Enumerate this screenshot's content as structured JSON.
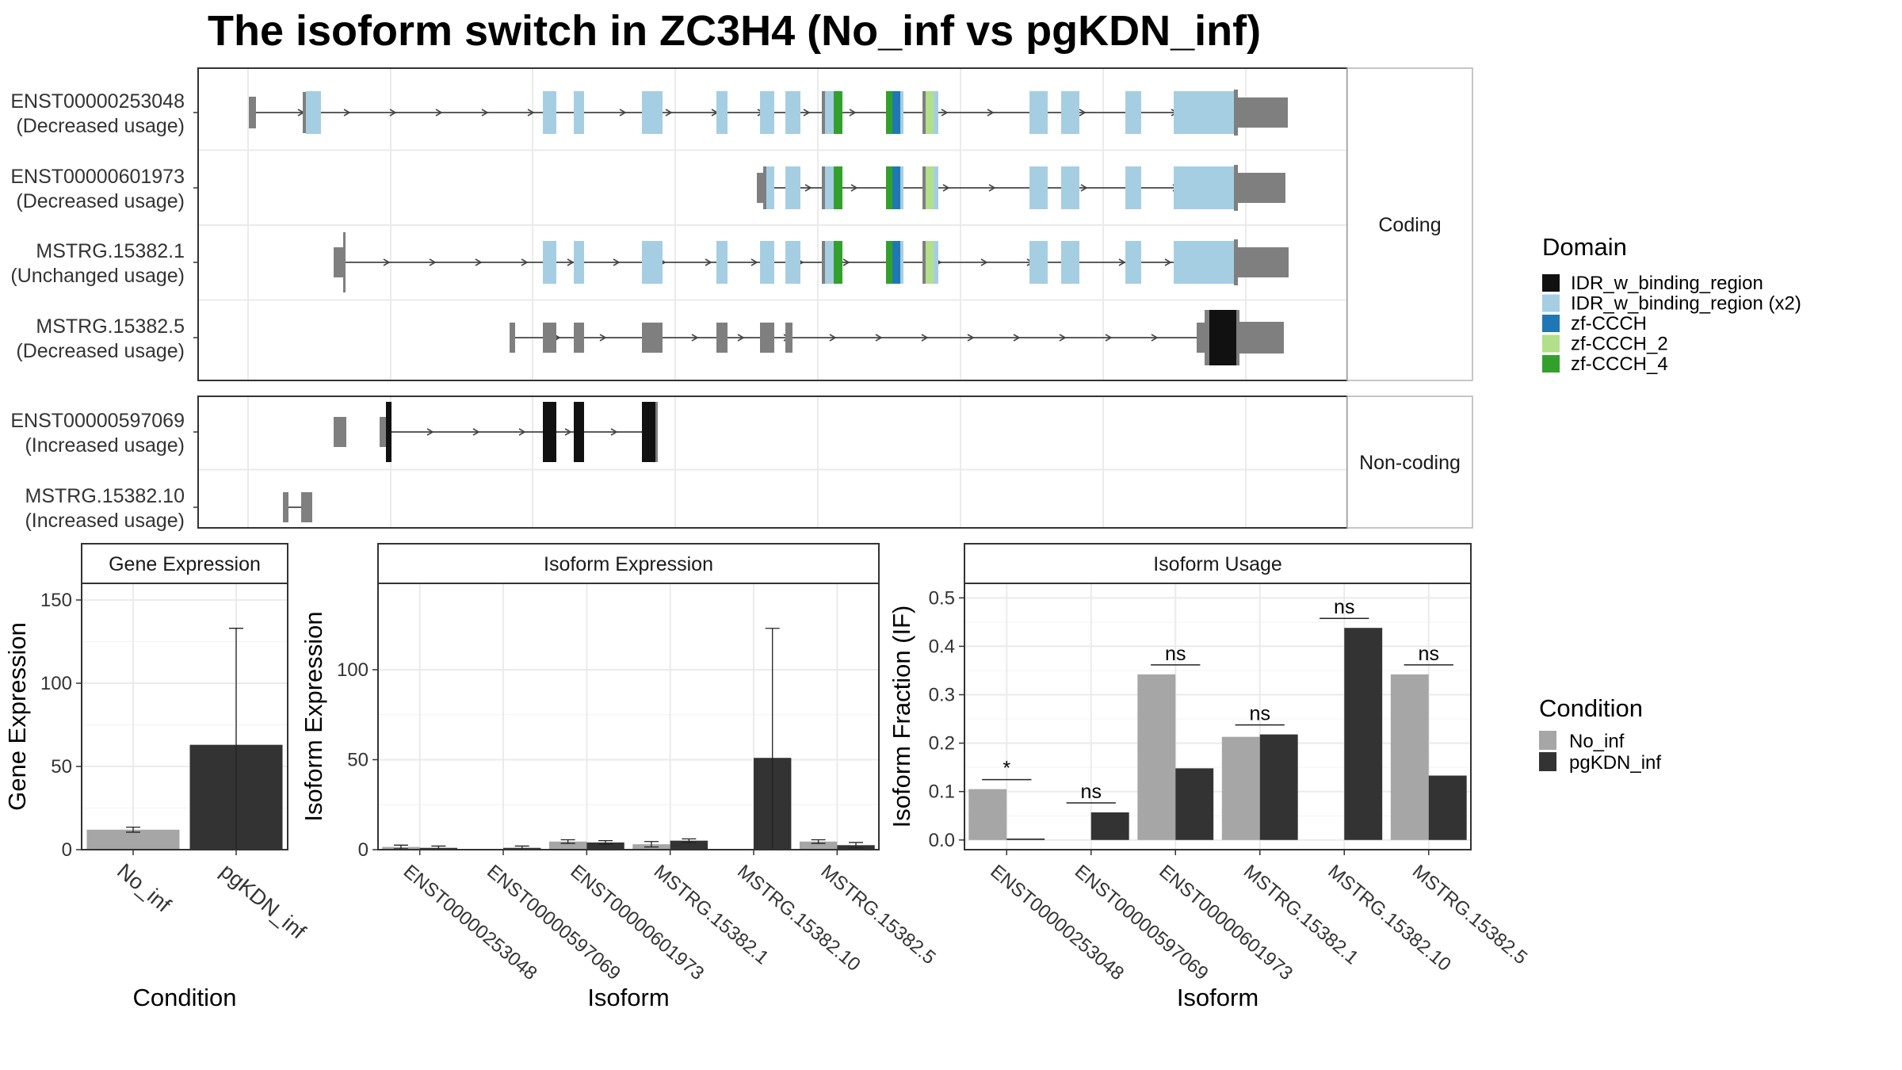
{
  "title": "The isoform switch in ZC3H4 (No_inf vs pgKDN_inf)",
  "colors": {
    "IDR": "#111111",
    "IDR_x2": "#a6cee3",
    "zfCCCH": "#1f78b4",
    "zfCCCH2": "#b2df8a",
    "zfCCCH4": "#33a02c",
    "noncoding": "#7f7f7f",
    "No_inf": "#a6a6a6",
    "pgKDN_inf": "#333333"
  },
  "legend_domain": {
    "title": "Domain",
    "items": [
      {
        "label": "IDR_w_binding_region",
        "color": "#111111"
      },
      {
        "label": "IDR_w_binding_region (x2)",
        "color": "#a6cee3"
      },
      {
        "label": "zf-CCCH",
        "color": "#1f78b4"
      },
      {
        "label": "zf-CCCH_2",
        "color": "#b2df8a"
      },
      {
        "label": "zf-CCCH_4",
        "color": "#33a02c"
      }
    ]
  },
  "legend_condition": {
    "title": "Condition",
    "items": [
      {
        "label": "No_inf",
        "color": "#a6a6a6"
      },
      {
        "label": "pgKDN_inf",
        "color": "#333333"
      }
    ]
  },
  "chart_data": [
    {
      "type": "gene-structure",
      "panels": [
        {
          "strip": "Coding",
          "tracks": [
            {
              "name": "ENST00000253048",
              "note": "(Decreased usage)"
            },
            {
              "name": "ENST00000601973",
              "note": "(Decreased usage)"
            },
            {
              "name": "MSTRG.15382.1",
              "note": "(Unchanged usage)"
            },
            {
              "name": "MSTRG.15382.5",
              "note": "(Decreased usage)"
            }
          ]
        },
        {
          "strip": "Non-coding",
          "tracks": [
            {
              "name": "ENST00000597069",
              "note": "(Increased usage)"
            },
            {
              "name": "MSTRG.15382.10",
              "note": "(Increased usage)"
            }
          ]
        }
      ]
    },
    {
      "type": "bar",
      "strip": "Gene Expression",
      "xlabel": "Condition",
      "ylabel": "Gene Expression",
      "categories": [
        "No_inf",
        "pgKDN_inf"
      ],
      "values": [
        12,
        63
      ],
      "errors": [
        1.5,
        70
      ],
      "ylim": [
        0,
        160
      ],
      "yticks": [
        0,
        50,
        100,
        150
      ]
    },
    {
      "type": "bar",
      "strip": "Isoform Expression",
      "xlabel": "Isoform",
      "ylabel": "Isoform Expression",
      "categories": [
        "ENST00000253048",
        "ENST00000597069",
        "ENST00000601973",
        "MSTRG.15382.1",
        "MSTRG.15382.10",
        "MSTRG.15382.5"
      ],
      "series": [
        {
          "name": "No_inf",
          "values": [
            1.5,
            0,
            4.5,
            3,
            0,
            4.5
          ],
          "errors": [
            1,
            0,
            1,
            1.5,
            0,
            1
          ]
        },
        {
          "name": "pgKDN_inf",
          "values": [
            1,
            1,
            4,
            5,
            51,
            2.5
          ],
          "errors": [
            1,
            1,
            1,
            1,
            72,
            1.5
          ]
        }
      ],
      "ylim": [
        0,
        148
      ],
      "yticks": [
        0,
        50,
        100
      ]
    },
    {
      "type": "bar",
      "strip": "Isoform Usage",
      "xlabel": "Isoform",
      "ylabel": "Isoform Fraction (IF)",
      "categories": [
        "ENST00000253048",
        "ENST00000597069",
        "ENST00000601973",
        "MSTRG.15382.1",
        "MSTRG.15382.10",
        "MSTRG.15382.5"
      ],
      "series": [
        {
          "name": "No_inf",
          "values": [
            0.105,
            0,
            0.342,
            0.213,
            0,
            0.342
          ]
        },
        {
          "name": "pgKDN_inf",
          "values": [
            0.003,
            0.057,
            0.148,
            0.218,
            0.438,
            0.133
          ]
        }
      ],
      "significance": [
        "*",
        "ns",
        "ns",
        "ns",
        "ns",
        "ns"
      ],
      "ylim": [
        -0.02,
        0.53
      ],
      "yticks": [
        0.0,
        0.1,
        0.2,
        0.3,
        0.4,
        0.5
      ],
      "ytick_labels": [
        "0.0",
        "0.1",
        "0.2",
        "0.3",
        "0.4",
        "0.5"
      ]
    }
  ]
}
